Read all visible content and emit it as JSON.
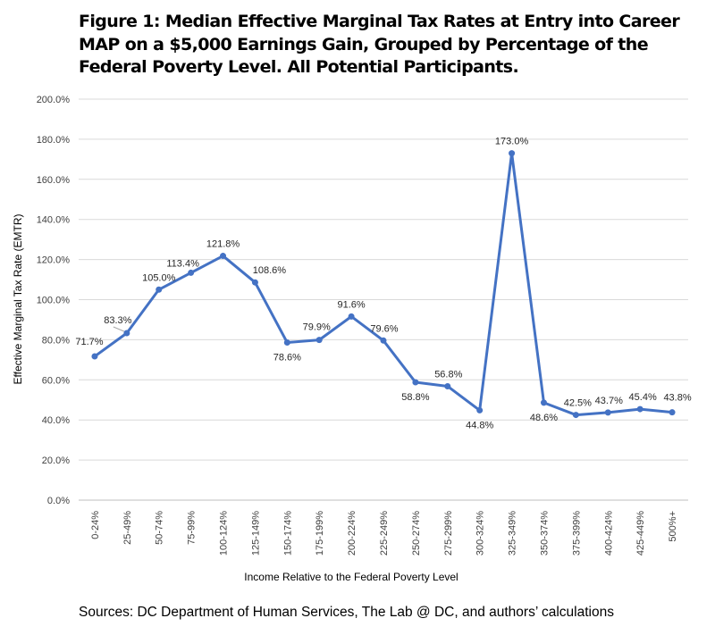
{
  "title": "Figure 1: Median Effective Marginal Tax Rates at Entry into Career MAP on a $5,000 Earnings Gain, Grouped by Percentage of the Federal Poverty Level. All Potential Participants.",
  "source": "Sources: DC Department of Human Services, The Lab @ DC, and authors’ calculations",
  "chart_data": {
    "type": "line",
    "xlabel": "Income Relative to the Federal Poverty Level",
    "ylabel": "Effective Marginal Tax Rate (EMTR)",
    "ylim": [
      0,
      200
    ],
    "yticks": [
      "0.0%",
      "20.0%",
      "40.0%",
      "60.0%",
      "80.0%",
      "100.0%",
      "120.0%",
      "140.0%",
      "160.0%",
      "180.0%",
      "200.0%"
    ],
    "grid": true,
    "color": "#4472C4",
    "categories": [
      "0-24%",
      "25-49%",
      "50-74%",
      "75-99%",
      "100-124%",
      "125-149%",
      "150-174%",
      "175-199%",
      "200-224%",
      "225-249%",
      "250-274%",
      "275-299%",
      "300-324%",
      "325-349%",
      "350-374%",
      "375-399%",
      "400-424%",
      "425-449%",
      "500%+"
    ],
    "values": [
      71.7,
      83.3,
      105.0,
      113.4,
      121.8,
      108.6,
      78.6,
      79.9,
      91.6,
      79.6,
      58.8,
      56.8,
      44.8,
      173.0,
      48.6,
      42.5,
      43.7,
      45.4,
      43.8
    ],
    "data_labels": [
      "71.7%",
      "83.3%",
      "105.0%",
      "113.4%",
      "121.8%",
      "108.6%",
      "78.6%",
      "79.9%",
      "91.6%",
      "79.6%",
      "58.8%",
      "56.8%",
      "44.8%",
      "173.0%",
      "48.6%",
      "42.5%",
      "43.7%",
      "45.4%",
      "43.8%"
    ]
  }
}
